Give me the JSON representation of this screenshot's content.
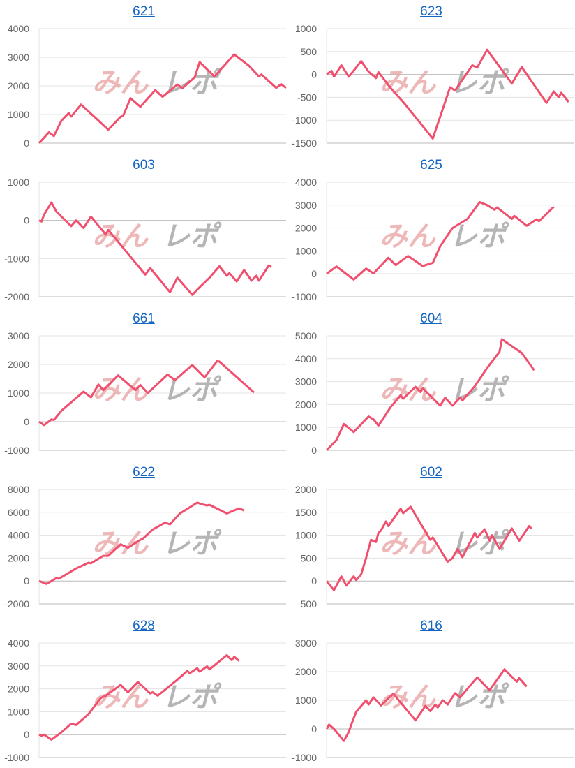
{
  "watermark": {
    "part1": "みん",
    "part2": "レポ",
    "color1": "#e8a0a0",
    "color2": "#a8a8a8"
  },
  "line_color": "#f0506e",
  "chart_data": [
    {
      "type": "line",
      "title": "621",
      "ylim": [
        0,
        4000
      ],
      "yticks": [
        "0",
        "1000",
        "2000",
        "3000",
        "4000"
      ],
      "grid": true,
      "x": [
        0,
        4,
        6,
        9,
        12,
        13,
        17,
        28,
        33,
        34,
        37,
        41,
        47,
        50,
        56,
        58,
        63,
        65,
        71,
        79,
        85,
        89,
        90,
        96,
        98,
        100
      ],
      "y": [
        0,
        380,
        250,
        780,
        1050,
        930,
        1350,
        470,
        920,
        950,
        1570,
        1270,
        1850,
        1620,
        2050,
        1920,
        2300,
        2830,
        2330,
        3100,
        2700,
        2330,
        2400,
        1930,
        2060,
        1930
      ]
    },
    {
      "type": "line",
      "title": "623",
      "ylim": [
        -1500,
        1000
      ],
      "yticks": [
        "-1500",
        "-1000",
        "-500",
        "0",
        "500",
        "1000"
      ],
      "grid": true,
      "x": [
        0,
        2,
        3,
        6,
        9,
        14,
        17,
        20,
        21,
        26,
        31,
        40,
        43,
        50,
        52,
        59,
        61,
        65,
        75,
        79,
        89,
        92,
        94,
        95,
        98
      ],
      "y": [
        0,
        80,
        -50,
        200,
        -50,
        290,
        60,
        -80,
        50,
        -300,
        -600,
        -1200,
        -1400,
        -280,
        -350,
        200,
        150,
        540,
        -200,
        160,
        -620,
        -370,
        -500,
        -400,
        -600
      ]
    },
    {
      "type": "line",
      "title": "603",
      "ylim": [
        -2000,
        1000
      ],
      "yticks": [
        "-2000",
        "-1000",
        "0",
        "1000"
      ],
      "grid": true,
      "x": [
        0,
        1,
        2,
        5,
        7,
        13,
        15,
        18,
        21,
        27,
        28,
        43,
        45,
        53,
        56,
        62,
        65,
        69,
        73,
        76,
        77,
        80,
        83,
        86,
        88,
        89,
        93,
        94
      ],
      "y": [
        0,
        -30,
        150,
        470,
        230,
        -150,
        0,
        -200,
        100,
        -370,
        -250,
        -1420,
        -1250,
        -1880,
        -1500,
        -1950,
        -1750,
        -1500,
        -1200,
        -1450,
        -1380,
        -1600,
        -1300,
        -1580,
        -1450,
        -1580,
        -1180,
        -1220
      ]
    },
    {
      "type": "line",
      "title": "625",
      "ylim": [
        -1000,
        4000
      ],
      "yticks": [
        "-1000",
        "0",
        "1000",
        "2000",
        "3000",
        "4000"
      ],
      "grid": true,
      "x": [
        0,
        4,
        11,
        16,
        19,
        25,
        28,
        33,
        39,
        40,
        43,
        46,
        51,
        57,
        62,
        65,
        68,
        69,
        75,
        76,
        81,
        85,
        86,
        92
      ],
      "y": [
        0,
        320,
        -250,
        230,
        20,
        700,
        380,
        780,
        330,
        380,
        480,
        1200,
        2000,
        2400,
        3130,
        3000,
        2800,
        2900,
        2400,
        2530,
        2100,
        2380,
        2300,
        2930
      ]
    },
    {
      "type": "line",
      "title": "661",
      "ylim": [
        -1000,
        3000
      ],
      "yticks": [
        "-1000",
        "0",
        "1000",
        "2000",
        "3000"
      ],
      "grid": true,
      "x": [
        0,
        2,
        5,
        6,
        9,
        18,
        21,
        24,
        26,
        32,
        39,
        41,
        44,
        52,
        55,
        62,
        67,
        72,
        73,
        87
      ],
      "y": [
        0,
        -120,
        80,
        60,
        380,
        1050,
        850,
        1300,
        1100,
        1620,
        1100,
        1280,
        1000,
        1650,
        1450,
        1980,
        1550,
        2110,
        2100,
        1020
      ]
    },
    {
      "type": "line",
      "title": "604",
      "ylim": [
        0,
        5000
      ],
      "yticks": [
        "0",
        "1000",
        "2000",
        "3000",
        "4000",
        "5000"
      ],
      "grid": true,
      "x": [
        0,
        4,
        7,
        11,
        17,
        19,
        21,
        23,
        26,
        30,
        31,
        36,
        38,
        39,
        46,
        48,
        51,
        54,
        55,
        60,
        65,
        70,
        71,
        79,
        84
      ],
      "y": [
        0,
        450,
        1150,
        800,
        1480,
        1350,
        1080,
        1400,
        1900,
        2400,
        2250,
        2770,
        2550,
        2700,
        1950,
        2300,
        1950,
        2300,
        2180,
        2800,
        3600,
        4300,
        4850,
        4250,
        3500
      ]
    },
    {
      "type": "line",
      "title": "622",
      "ylim": [
        -2000,
        8000
      ],
      "yticks": [
        "-2000",
        "0",
        "2000",
        "4000",
        "6000",
        "8000"
      ],
      "grid": true,
      "x": [
        0,
        3,
        7,
        8,
        15,
        20,
        21,
        26,
        28,
        33,
        36,
        41,
        42,
        46,
        51,
        53,
        57,
        60,
        64,
        66,
        68,
        69,
        76,
        81,
        83
      ],
      "y": [
        0,
        -250,
        250,
        200,
        1100,
        1600,
        1550,
        2200,
        2200,
        3200,
        2900,
        3600,
        3700,
        4500,
        5100,
        4950,
        5900,
        6300,
        6850,
        6700,
        6600,
        6650,
        5900,
        6350,
        6150
      ]
    },
    {
      "type": "line",
      "title": "602",
      "ylim": [
        -500,
        2000
      ],
      "yticks": [
        "-500",
        "0",
        "500",
        "1000",
        "1500",
        "2000"
      ],
      "grid": true,
      "x": [
        0,
        3,
        6,
        8,
        11,
        12,
        14,
        16,
        18,
        20,
        21,
        22,
        24,
        25,
        30,
        31,
        34,
        42,
        43,
        49,
        51,
        53,
        55,
        60,
        61,
        64,
        66,
        67,
        70,
        75,
        78,
        82,
        83
      ],
      "y": [
        0,
        -200,
        100,
        -100,
        100,
        20,
        150,
        500,
        900,
        850,
        1050,
        1100,
        1300,
        1200,
        1580,
        1480,
        1620,
        900,
        950,
        420,
        500,
        700,
        520,
        1050,
        950,
        1130,
        880,
        1000,
        700,
        1150,
        880,
        1200,
        1140
      ]
    },
    {
      "type": "line",
      "title": "628",
      "ylim": [
        -1000,
        4000
      ],
      "yticks": [
        "-1000",
        "0",
        "1000",
        "2000",
        "3000",
        "4000"
      ],
      "grid": true,
      "x": [
        0,
        1,
        2,
        5,
        9,
        13,
        15,
        20,
        25,
        27,
        33,
        36,
        40,
        45,
        46,
        48,
        56,
        60,
        61,
        64,
        65,
        68,
        69,
        76,
        78,
        79,
        81
      ],
      "y": [
        0,
        -50,
        0,
        -220,
        100,
        480,
        420,
        900,
        1600,
        1700,
        2170,
        1850,
        2300,
        1800,
        1850,
        1700,
        2400,
        2780,
        2680,
        2900,
        2750,
        2980,
        2850,
        3470,
        3250,
        3400,
        3220
      ]
    },
    {
      "type": "line",
      "title": "616",
      "ylim": [
        -1000,
        3000
      ],
      "yticks": [
        "-1000",
        "0",
        "1000",
        "2000",
        "3000"
      ],
      "grid": true,
      "x": [
        0,
        1,
        3,
        7,
        9,
        10,
        12,
        16,
        17,
        19,
        22,
        27,
        36,
        40,
        42,
        44,
        45,
        47,
        49,
        52,
        54,
        61,
        66,
        72,
        77,
        78,
        81
      ],
      "y": [
        0,
        150,
        0,
        -420,
        -100,
        150,
        600,
        1000,
        850,
        1100,
        820,
        1230,
        300,
        800,
        620,
        850,
        750,
        1000,
        850,
        1250,
        1100,
        1800,
        1350,
        2080,
        1650,
        1770,
        1480
      ]
    }
  ]
}
